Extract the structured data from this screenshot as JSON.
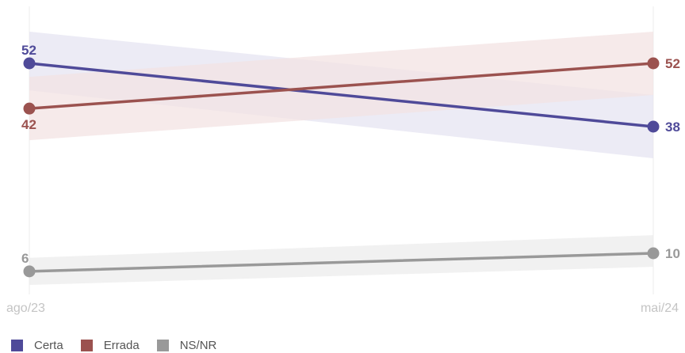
{
  "chart_data": {
    "type": "line",
    "x": [
      "ago/23",
      "mai/24"
    ],
    "ylim": [
      0,
      60
    ],
    "grid": false,
    "legend_position": "bottom-left",
    "series": [
      {
        "name": "Certa",
        "values": [
          52,
          38
        ],
        "band_low": [
          46,
          31
        ],
        "band_high": [
          59,
          45
        ],
        "color": "#4f4a99",
        "band_color": "#e6e4f1"
      },
      {
        "name": "Errada",
        "values": [
          42,
          52
        ],
        "band_low": [
          35,
          45
        ],
        "band_high": [
          49,
          59
        ],
        "color": "#9b524f",
        "band_color": "#f3e3e3"
      },
      {
        "name": "NS/NR",
        "values": [
          6,
          10
        ],
        "band_low": [
          3,
          7
        ],
        "band_high": [
          9,
          14
        ],
        "color": "#999999",
        "band_color": "#ececec"
      }
    ]
  }
}
